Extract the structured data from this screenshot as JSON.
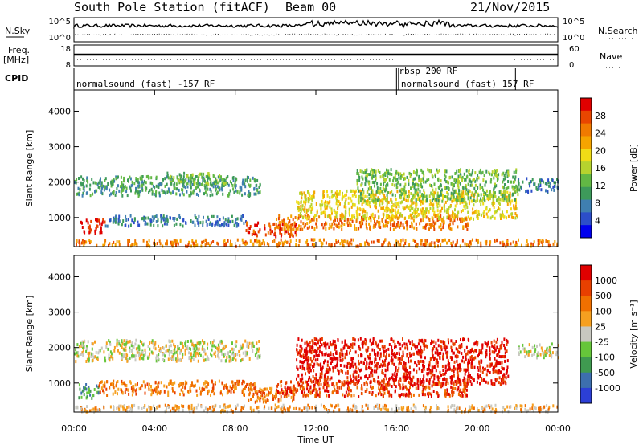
{
  "header": {
    "station": "South Pole Station (fitACF)",
    "beam": "Beam 00",
    "date": "21/Nov/2015"
  },
  "top_panels": {
    "nsky_label": "N.Sky",
    "nsky_ticks": [
      "10^5",
      "10^0"
    ],
    "nsearch_label": "N.Search",
    "nsearch_ticks": [
      "10^5",
      "10^0"
    ],
    "freq_label": "Freq.",
    "freq_unit": "[MHz]",
    "freq_ticks": [
      "18",
      "8"
    ],
    "nave_label": "Nave",
    "nave_ticks": [
      "60",
      "0"
    ],
    "cpid_label": "CPID",
    "cpid_segments": [
      {
        "label": "normalsound (fast) -157 RF",
        "start_hour": 0,
        "end_hour": 16
      },
      {
        "label": "rbsp 200 RF",
        "start_hour": 16,
        "end_hour": 16.1
      },
      {
        "label": "normalsound (fast) 157 RF",
        "start_hour": 16.1,
        "end_hour": 21.9
      }
    ]
  },
  "x_axis": {
    "label": "Time UT",
    "ticks": [
      "00:00",
      "04:00",
      "08:00",
      "12:00",
      "16:00",
      "20:00",
      "00:00"
    ],
    "range_hours": [
      0,
      24
    ]
  },
  "chart_data": [
    {
      "type": "heatmap",
      "ylabel": "Slant Range [km]",
      "y_ticks": [
        1000,
        2000,
        3000,
        4000
      ],
      "ylim": [
        180,
        4600
      ],
      "xlim_hours": [
        0,
        24
      ],
      "colorbar_label": "Power [dB]",
      "colorbar_ticks": [
        "4",
        "8",
        "12",
        "16",
        "20",
        "24",
        "28"
      ],
      "colorbar_colors": [
        "#0000ee",
        "#2c4ec9",
        "#3f7fb0",
        "#3d9a5a",
        "#62b844",
        "#b6d32e",
        "#f0dc16",
        "#f5a400",
        "#f07a00",
        "#e84600",
        "#e00000"
      ],
      "scatter_bands": [
        {
          "from_hour": 0.0,
          "to_hour": 9.2,
          "range_km": [
            1650,
            2200
          ],
          "level_index": 3
        },
        {
          "from_hour": 4.5,
          "to_hour": 7.5,
          "range_km": [
            1950,
            2300
          ],
          "level_index": 4
        },
        {
          "from_hour": 0.3,
          "to_hour": 1.5,
          "range_km": [
            600,
            1000
          ],
          "level_index": 10
        },
        {
          "from_hour": 1.5,
          "to_hour": 8.5,
          "range_km": [
            800,
            1100
          ],
          "level_index": 2
        },
        {
          "from_hour": 8.5,
          "to_hour": 11.0,
          "range_km": [
            500,
            900
          ],
          "level_index": 9
        },
        {
          "from_hour": 10.0,
          "to_hour": 19.5,
          "range_km": [
            700,
            1100
          ],
          "level_index": 8
        },
        {
          "from_hour": 11.0,
          "to_hour": 22.0,
          "range_km": [
            1000,
            1800
          ],
          "level_index": 6
        },
        {
          "from_hour": 14.0,
          "to_hour": 22.0,
          "range_km": [
            1500,
            2400
          ],
          "level_index": 4
        },
        {
          "from_hour": 22.0,
          "to_hour": 24.0,
          "range_km": [
            1750,
            2150
          ],
          "level_index": 2
        },
        {
          "from_hour": 0.0,
          "to_hour": 24.0,
          "range_km": [
            230,
            420
          ],
          "level_index": 8
        }
      ]
    },
    {
      "type": "heatmap",
      "ylabel": "Slant Range [km]",
      "y_ticks": [
        1000,
        2000,
        3000,
        4000
      ],
      "ylim": [
        180,
        4600
      ],
      "xlim_hours": [
        0,
        24
      ],
      "colorbar_label": "Velocity [m s⁻¹]",
      "colorbar_ticks": [
        "1000",
        "500",
        "100",
        "25",
        "-25",
        "-100",
        "-500",
        "-1000"
      ],
      "colorbar_colors": [
        "#2c3fd6",
        "#3d6fae",
        "#3f9a50",
        "#66c63a",
        "#c8c8c0",
        "#f6a020",
        "#f07000",
        "#e84000",
        "#e00000"
      ],
      "scatter_bands": [
        {
          "from_hour": 0.0,
          "to_hour": 9.2,
          "range_km": [
            1650,
            2250
          ],
          "level_index": 4
        },
        {
          "from_hour": 0.2,
          "to_hour": 1.2,
          "range_km": [
            600,
            1000
          ],
          "level_index": 2
        },
        {
          "from_hour": 1.2,
          "to_hour": 9.0,
          "range_km": [
            700,
            1100
          ],
          "level_index": 6
        },
        {
          "from_hour": 8.5,
          "to_hour": 11.0,
          "range_km": [
            500,
            900
          ],
          "level_index": 6
        },
        {
          "from_hour": 10.0,
          "to_hour": 19.5,
          "range_km": [
            650,
            1100
          ],
          "level_index": 7
        },
        {
          "from_hour": 11.0,
          "to_hour": 21.5,
          "range_km": [
            1000,
            2300
          ],
          "level_index": 8
        },
        {
          "from_hour": 22.0,
          "to_hour": 24.0,
          "range_km": [
            1750,
            2150
          ],
          "level_index": 4
        },
        {
          "from_hour": 0.0,
          "to_hour": 24.0,
          "range_km": [
            230,
            420
          ],
          "level_index": 5
        }
      ]
    }
  ]
}
